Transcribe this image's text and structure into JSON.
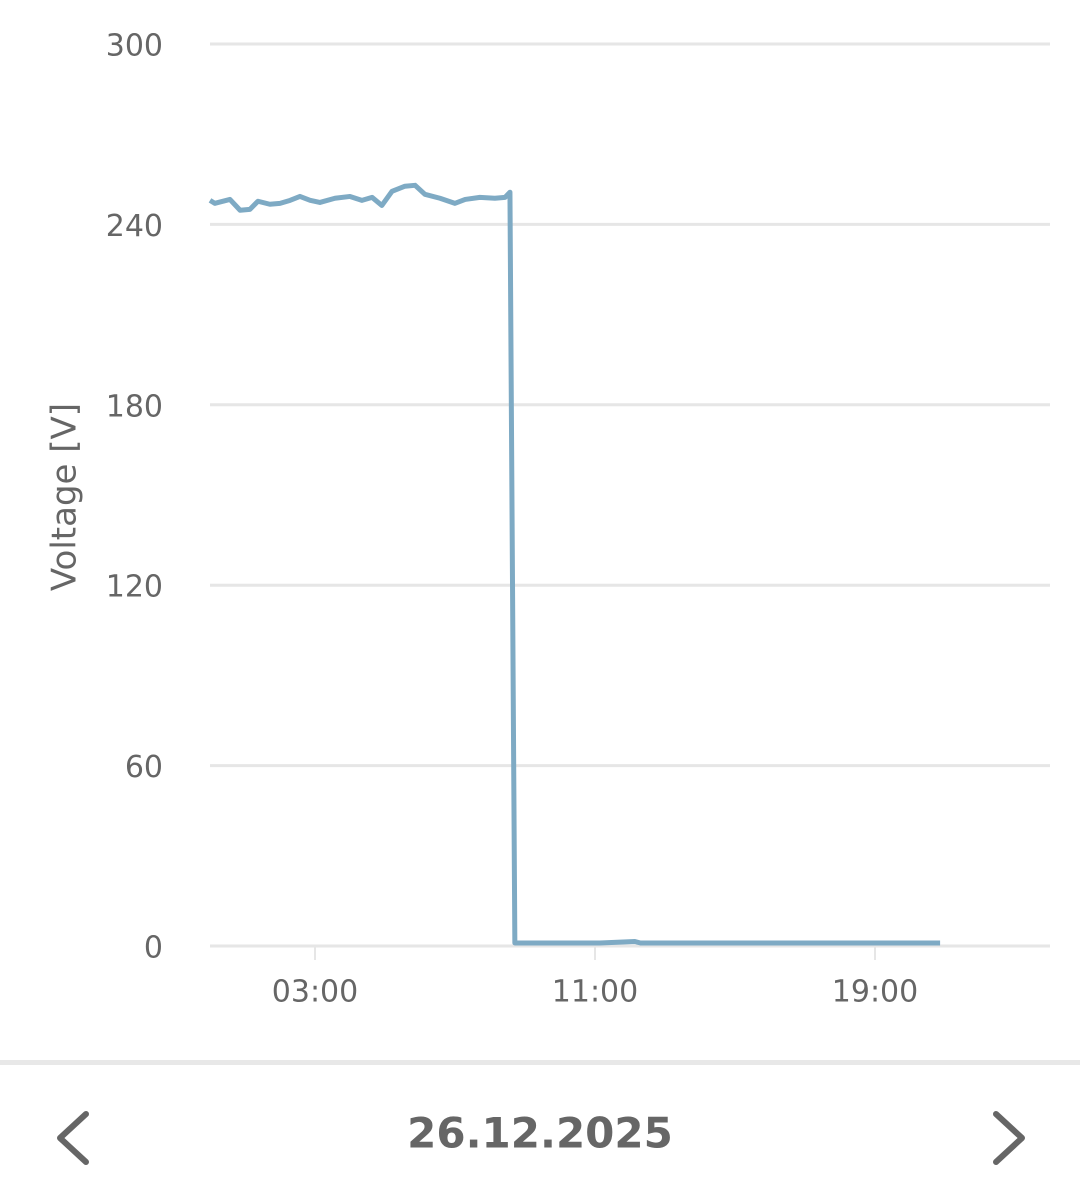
{
  "chart_data": {
    "type": "line",
    "y_label": "Voltage [V]",
    "x": [
      0,
      0.14,
      0.57,
      0.86,
      1.14,
      1.37,
      1.71,
      2,
      2.29,
      2.57,
      2.86,
      3.14,
      3.57,
      4,
      4.34,
      4.63,
      4.91,
      5.2,
      5.57,
      5.86,
      6.14,
      6.57,
      7,
      7.29,
      7.71,
      8.14,
      8.43,
      8.57,
      8.71,
      11.14,
      12.14,
      12.3,
      20.86
    ],
    "values": [
      248,
      247,
      248.3,
      244.7,
      245,
      247.7,
      246.7,
      247,
      248,
      249.3,
      248,
      247.3,
      248.7,
      249.3,
      248,
      249,
      246.3,
      251,
      252.7,
      253,
      250,
      248.7,
      247,
      248.3,
      249,
      248.7,
      249,
      250.7,
      1,
      1,
      1.5,
      1,
      1
    ],
    "color": "#7eaac4",
    "xlim": [
      0,
      24
    ],
    "xticks": [
      {
        "value": 3,
        "label": "03:00"
      },
      {
        "value": 11,
        "label": "11:00"
      },
      {
        "value": 19,
        "label": "19:00"
      }
    ],
    "ylim": [
      0,
      300
    ],
    "yticks": [
      0,
      60,
      120,
      180,
      240,
      300
    ],
    "grid": true
  },
  "navigation": {
    "date": "26.12.2025"
  }
}
